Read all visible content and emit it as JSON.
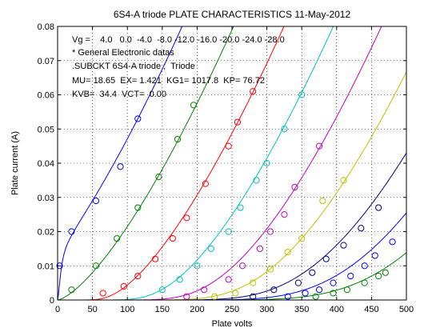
{
  "chart_data": {
    "type": "line",
    "title": "6S4-A triode PLATE CHARACTERISTICS  11-May-2012",
    "xlabel": "Plate volts",
    "ylabel": "Plate current (A)",
    "xlim": [
      0,
      500
    ],
    "ylim": [
      0,
      0.08
    ],
    "x_ticks": [
      "0",
      "50",
      "100",
      "150",
      "200",
      "250",
      "300",
      "350",
      "400",
      "450",
      "500"
    ],
    "y_ticks": [
      "0",
      "0.01",
      "0.02",
      "0.03",
      "0.04",
      "0.05",
      "0.06",
      "0.07",
      "0.08"
    ],
    "grid": true,
    "annotations": [
      "Vg =    4.0   0.0  -4.0  -8.0 -12.0 -16.0 -20.0 -24.0 -28.0",
      "* General Electronic datas",
      ".SUBCKT 6S4-A triode ;  Triode",
      "MU= 18.65  EX= 1.421  KG1= 1017.8  KP= 76.72",
      "KVB=  34.4  VCT=  0.00"
    ],
    "model": {
      "mu": 18.65,
      "ex": 1.421,
      "kg1": 1017.8,
      "kp": 76.72,
      "kvb": 34.4,
      "vct": 0.0
    },
    "series": [
      {
        "grid_voltage": 4.0,
        "color": "#0000ff",
        "points": [
          [
            3,
            0.01
          ],
          [
            20,
            0.02
          ],
          [
            55,
            0.029
          ],
          [
            90,
            0.039
          ],
          [
            115,
            0.053
          ]
        ]
      },
      {
        "grid_voltage": 0.0,
        "color": "#008000",
        "points": [
          [
            20,
            0.003
          ],
          [
            55,
            0.01
          ],
          [
            85,
            0.018
          ],
          [
            115,
            0.027
          ],
          [
            145,
            0.036
          ],
          [
            172,
            0.047
          ],
          [
            195,
            0.057
          ]
        ]
      },
      {
        "grid_voltage": -4.0,
        "color": "#ff0000",
        "points": [
          [
            65,
            0.002
          ],
          [
            95,
            0.004
          ],
          [
            115,
            0.007
          ],
          [
            140,
            0.012
          ],
          [
            165,
            0.018
          ],
          [
            185,
            0.024
          ],
          [
            212,
            0.034
          ],
          [
            245,
            0.045
          ],
          [
            258,
            0.052
          ],
          [
            280,
            0.061
          ]
        ]
      },
      {
        "grid_voltage": -8.0,
        "color": "#00bfbf",
        "points": [
          [
            150,
            0.003
          ],
          [
            175,
            0.006
          ],
          [
            200,
            0.01
          ],
          [
            220,
            0.015
          ],
          [
            245,
            0.02
          ],
          [
            262,
            0.027
          ],
          [
            285,
            0.035
          ],
          [
            300,
            0.04
          ],
          [
            325,
            0.05
          ],
          [
            350,
            0.06
          ]
        ]
      },
      {
        "grid_voltage": -12.0,
        "color": "#bf00bf",
        "points": [
          [
            185,
            0.001
          ],
          [
            210,
            0.003
          ],
          [
            245,
            0.006
          ],
          [
            265,
            0.01
          ],
          [
            290,
            0.015
          ],
          [
            305,
            0.02
          ],
          [
            325,
            0.025
          ],
          [
            340,
            0.033
          ],
          [
            375,
            0.045
          ]
        ]
      },
      {
        "grid_voltage": -16.0,
        "color": "#bfbf00",
        "points": [
          [
            225,
            0.001
          ],
          [
            255,
            0.002
          ],
          [
            280,
            0.005
          ],
          [
            305,
            0.009
          ],
          [
            330,
            0.014
          ],
          [
            350,
            0.018
          ],
          [
            380,
            0.029
          ],
          [
            410,
            0.035
          ]
        ]
      },
      {
        "grid_voltage": -20.0,
        "color": "#000080",
        "points": [
          [
            280,
            0.001
          ],
          [
            310,
            0.003
          ],
          [
            345,
            0.005
          ],
          [
            365,
            0.008
          ],
          [
            385,
            0.012
          ],
          [
            410,
            0.016
          ],
          [
            435,
            0.021
          ],
          [
            460,
            0.027
          ]
        ]
      },
      {
        "grid_voltage": -24.0,
        "color": "#0000ff",
        "points": [
          [
            330,
            0.001
          ],
          [
            355,
            0.002
          ],
          [
            375,
            0.003
          ],
          [
            395,
            0.005
          ],
          [
            420,
            0.007
          ],
          [
            440,
            0.01
          ],
          [
            455,
            0.013
          ],
          [
            480,
            0.017
          ]
        ]
      },
      {
        "grid_voltage": -28.0,
        "color": "#008000",
        "points": [
          [
            370,
            0.001
          ],
          [
            395,
            0.002
          ],
          [
            415,
            0.003
          ],
          [
            440,
            0.005
          ],
          [
            460,
            0.007
          ],
          [
            470,
            0.008
          ]
        ]
      }
    ]
  }
}
